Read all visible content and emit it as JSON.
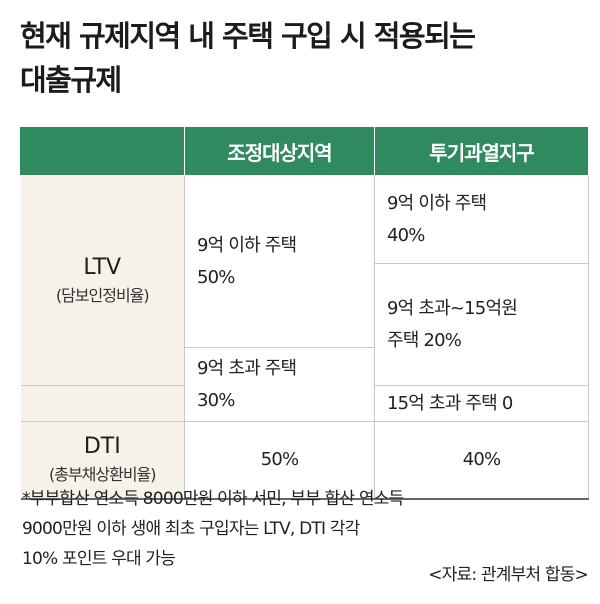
{
  "title": {
    "line1": "현재 규제지역 내 주택 구입 시 적용되는",
    "line2": "대출규제"
  },
  "table": {
    "headers": [
      "",
      "조정대상지역",
      "투기과열지구"
    ],
    "ltv": {
      "label": "LTV",
      "sublabel": "(담보인정비율)",
      "adjusted": {
        "row1": [
          "9억 이하 주택",
          "50%"
        ],
        "row2": [
          "9억 초과 주택",
          "30%"
        ]
      },
      "speculative": {
        "row1": [
          "9억 이하 주택",
          "40%"
        ],
        "row2": [
          "9억 초과~15억원",
          "주택 20%"
        ],
        "row3": "15억 초과 주택 0"
      }
    },
    "dti": {
      "label": "DTI",
      "sublabel": "(총부채상환비율)",
      "adjusted": "50%",
      "speculative": "40%"
    }
  },
  "footnote": [
    "*부부합산 연소득 8000만원 이하 서민, 부부 합산 연소득",
    "9000만원 이하 생애 최초 구입자는 LTV, DTI 각각",
    "10% 포인트 우대 가능"
  ],
  "source": "<자료: 관계부처 합동>",
  "colors": {
    "header_bg": "#2f8a60",
    "row_label_bg": "#f6f2ea"
  }
}
